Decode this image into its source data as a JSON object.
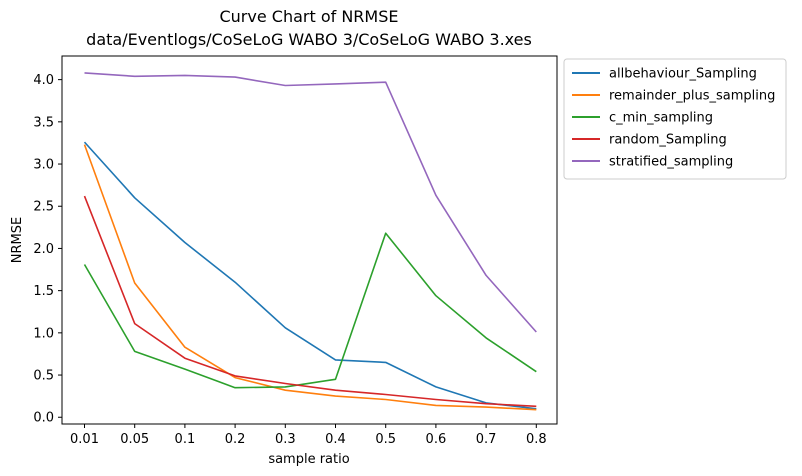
{
  "chart_data": {
    "type": "line",
    "title": "Curve Chart of NRMSE",
    "subtitle": "data/Eventlogs/CoSeLoG WABO 3/CoSeLoG WABO 3.xes",
    "xlabel": "sample ratio",
    "ylabel": "NRMSE",
    "categories": [
      "0.01",
      "0.05",
      "0.1",
      "0.2",
      "0.3",
      "0.4",
      "0.5",
      "0.6",
      "0.7",
      "0.8"
    ],
    "ylim": [
      -0.08,
      4.28
    ],
    "yticks": [
      "0.0",
      "0.5",
      "1.0",
      "1.5",
      "2.0",
      "2.5",
      "3.0",
      "3.5",
      "4.0"
    ],
    "grid": false,
    "legend_position": "outside-top-right",
    "series": [
      {
        "name": "allbehaviour_Sampling",
        "color": "#1f77b4",
        "values": [
          3.26,
          2.6,
          2.07,
          1.6,
          1.06,
          0.68,
          0.65,
          0.36,
          0.17,
          0.1
        ]
      },
      {
        "name": "remainder_plus_sampling",
        "color": "#ff7f0e",
        "values": [
          3.23,
          1.59,
          0.83,
          0.47,
          0.32,
          0.25,
          0.21,
          0.14,
          0.12,
          0.09
        ]
      },
      {
        "name": "c_min_sampling",
        "color": "#2ca02c",
        "values": [
          1.81,
          0.78,
          0.57,
          0.35,
          0.36,
          0.45,
          2.18,
          1.44,
          0.94,
          0.54
        ]
      },
      {
        "name": "random_Sampling",
        "color": "#d62728",
        "values": [
          2.62,
          1.11,
          0.7,
          0.49,
          0.4,
          0.32,
          0.27,
          0.21,
          0.16,
          0.13
        ]
      },
      {
        "name": "stratified_sampling",
        "color": "#9467bd",
        "values": [
          4.08,
          4.04,
          4.05,
          4.03,
          3.93,
          3.95,
          3.97,
          2.63,
          1.68,
          1.01
        ]
      }
    ]
  }
}
